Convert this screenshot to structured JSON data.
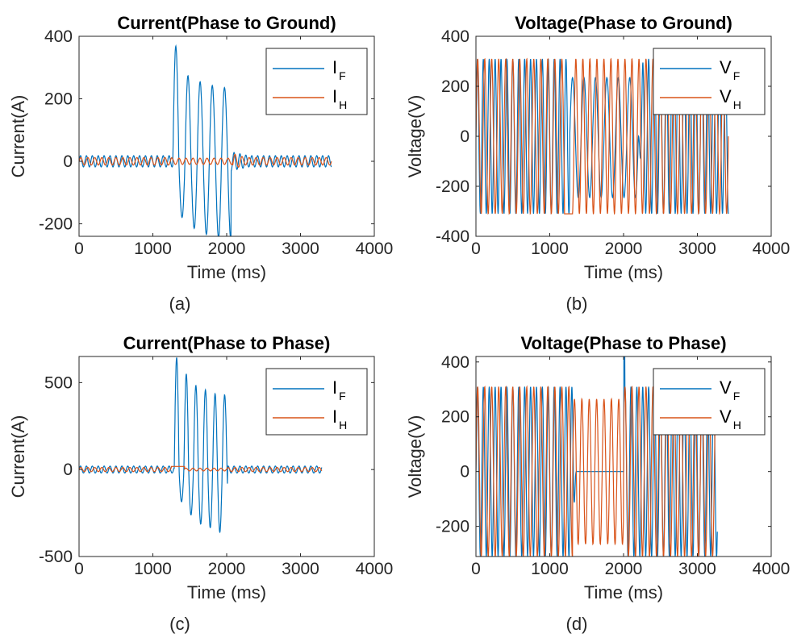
{
  "figure": {
    "colors": {
      "F": "#0072BD",
      "H": "#D95319",
      "axis": "#262626"
    },
    "chart_data": [
      {
        "type": "line",
        "title": "Current(Phase to Ground)",
        "xlabel": "Time (ms)",
        "ylabel": "Current(A)",
        "caption": "(a)",
        "xlim": [
          0,
          4000
        ],
        "ylim": [
          -240,
          400
        ],
        "xticks": [
          0,
          1000,
          2000,
          3000,
          4000
        ],
        "xtick_labels": [
          "0",
          "1000",
          "2000",
          "3000",
          "4000"
        ],
        "yticks": [
          -200,
          0,
          200,
          400
        ],
        "ytick_labels": [
          "-200",
          "0",
          "200",
          "400"
        ],
        "legend": {
          "position": "top-right",
          "entries": [
            {
              "main": "I",
              "sub": "F"
            },
            {
              "main": "I",
              "sub": "H"
            }
          ]
        },
        "series": [
          {
            "name": "IF",
            "color": "#0072BD",
            "x_end": 3420,
            "amplitude": 18,
            "period_ms": 80,
            "events": [
              {
                "type": "burst",
                "start": 1270,
                "end": 2060,
                "period_ms": 165,
                "pos_peaks": [
                  365,
                  272,
                  255,
                  245,
                  240
                ],
                "neg_peaks": [
                  -182,
                  -215,
                  -232,
                  -240,
                  -240
                ]
              },
              {
                "type": "decay",
                "start": 2060,
                "end": 2300,
                "from": 30,
                "to": 18
              }
            ]
          },
          {
            "name": "IH",
            "color": "#D95319",
            "x_end": 3420,
            "amplitude": 12,
            "period_ms": 95,
            "events": [
              {
                "type": "damped",
                "start": 1260,
                "end": 2080,
                "amplitude": 10
              },
              {
                "type": "dip",
                "start": 2080,
                "end": 2250,
                "from": 25,
                "to": 12
              }
            ]
          }
        ]
      },
      {
        "type": "line",
        "title": "Voltage(Phase to Ground)",
        "xlabel": "Time (ms)",
        "ylabel": "Voltage(V)",
        "caption": "(b)",
        "xlim": [
          0,
          4000
        ],
        "ylim": [
          -400,
          400
        ],
        "xticks": [
          0,
          1000,
          2000,
          3000,
          4000
        ],
        "xtick_labels": [
          "0",
          "1000",
          "2000",
          "3000",
          "4000"
        ],
        "yticks": [
          -400,
          -200,
          0,
          200,
          400
        ],
        "ytick_labels": [
          "-400",
          "-200",
          "0",
          "200",
          "400"
        ],
        "legend": {
          "position": "top-right",
          "entries": [
            {
              "main": "V",
              "sub": "F"
            },
            {
              "main": "V",
              "sub": "H"
            }
          ]
        },
        "series": [
          {
            "name": "VF",
            "color": "#0072BD",
            "x_end": 3420,
            "amplitude": 310,
            "period_ms": 80,
            "events": [
              {
                "type": "window",
                "start": 1270,
                "end": 2200,
                "period_ms": 155,
                "max": 235,
                "min": -245
              },
              {
                "type": "rise",
                "start": 2200,
                "end": 2270
              }
            ]
          },
          {
            "name": "VH",
            "color": "#D95319",
            "x_end": 3420,
            "amplitude": 310,
            "period_ms": 95,
            "events": [
              {
                "type": "hold",
                "start": 1200,
                "end": 1310,
                "value": -310
              }
            ]
          }
        ]
      },
      {
        "type": "line",
        "title": "Current(Phase to Phase)",
        "xlabel": "Time (ms)",
        "ylabel": "Current(A)",
        "caption": "(c)",
        "xlim": [
          0,
          4000
        ],
        "ylim": [
          -500,
          650
        ],
        "xticks": [
          0,
          1000,
          2000,
          3000,
          4000
        ],
        "xtick_labels": [
          "0",
          "1000",
          "2000",
          "3000",
          "4000"
        ],
        "yticks": [
          -500,
          0,
          500
        ],
        "ytick_labels": [
          "-500",
          "0",
          "500"
        ],
        "legend": {
          "position": "top-right",
          "entries": [
            {
              "main": "I",
              "sub": "F"
            },
            {
              "main": "I",
              "sub": "H"
            }
          ]
        },
        "series": [
          {
            "name": "IF",
            "color": "#0072BD",
            "x_end": 3290,
            "amplitude": 20,
            "period_ms": 80,
            "events": [
              {
                "type": "burst",
                "start": 1290,
                "end": 2010,
                "period_ms": 130,
                "pos_peaks": [
                  645,
                  545,
                  490,
                  455,
                  435
                ],
                "neg_peaks": [
                  -190,
                  -260,
                  -310,
                  -340,
                  -355
                ]
              }
            ]
          },
          {
            "name": "IH",
            "color": "#D95319",
            "x_end": 3290,
            "amplitude": 12,
            "period_ms": 95,
            "events": [
              {
                "type": "dc",
                "start": 1250,
                "end": 1430,
                "value": 18
              },
              {
                "type": "damped",
                "start": 1430,
                "end": 2010,
                "amplitude": 8
              }
            ]
          }
        ]
      },
      {
        "type": "line",
        "title": "Voltage(Phase to Phase)",
        "xlabel": "Time (ms)",
        "ylabel": "Voltage(V)",
        "caption": "(d)",
        "xlim": [
          0,
          4000
        ],
        "ylim": [
          -310,
          420
        ],
        "xticks": [
          0,
          1000,
          2000,
          3000,
          4000
        ],
        "xtick_labels": [
          "0",
          "1000",
          "2000",
          "3000",
          "4000"
        ],
        "yticks": [
          -200,
          0,
          200,
          400
        ],
        "ytick_labels": [
          "-200",
          "0",
          "200",
          "400"
        ],
        "legend": {
          "position": "top-right",
          "entries": [
            {
              "main": "V",
              "sub": "F"
            },
            {
              "main": "V",
              "sub": "H"
            }
          ]
        },
        "series": [
          {
            "name": "VF",
            "color": "#0072BD",
            "x_end": 3270,
            "amplitude": 310,
            "period_ms": 80,
            "events": [
              {
                "type": "collapse",
                "start": 1300,
                "end": 1360,
                "to": 0
              },
              {
                "type": "flat",
                "start": 1360,
                "end": 2010,
                "value": 0
              },
              {
                "type": "spike",
                "at": 2010,
                "value": 420
              }
            ]
          },
          {
            "name": "VH",
            "color": "#D95319",
            "x_end": 3270,
            "amplitude": 310,
            "period_ms": 95,
            "events": [
              {
                "type": "window",
                "start": 1310,
                "end": 2000,
                "period_ms": 100,
                "max": 265,
                "min": -265
              }
            ]
          }
        ]
      }
    ]
  }
}
